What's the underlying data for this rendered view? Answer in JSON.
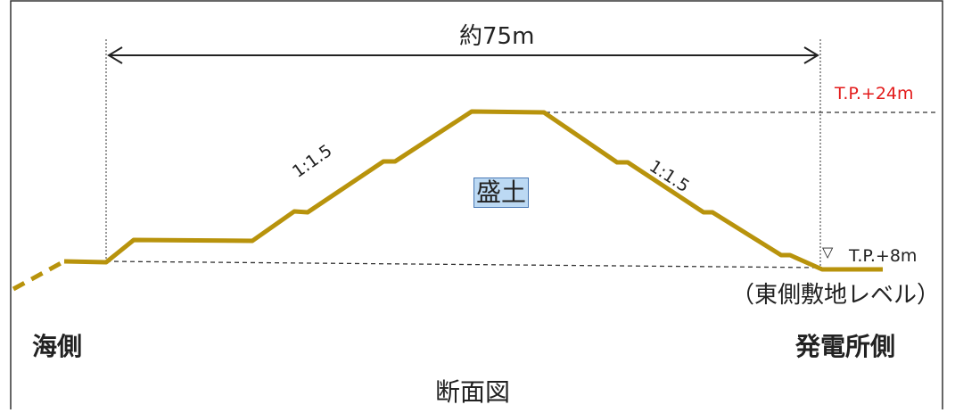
{
  "labels": {
    "width": "約75m",
    "tp_top": "T.P.+24m",
    "tp_base": "T.P.+8m",
    "base_marker": "▽",
    "east_level": "（東側敷地レベル）",
    "sea_side": "海側",
    "plant_side": "発電所側",
    "section": "断面図",
    "fill": "盛土",
    "slope_left": "1:1.5",
    "slope_right": "1:1.5"
  },
  "colors": {
    "embankment": "#b8930c",
    "tp_top_text": "#e31b1b",
    "fill_box_bg": "#bcd9f3",
    "fill_box_border": "#4a79b5",
    "frame": "#333333"
  }
}
